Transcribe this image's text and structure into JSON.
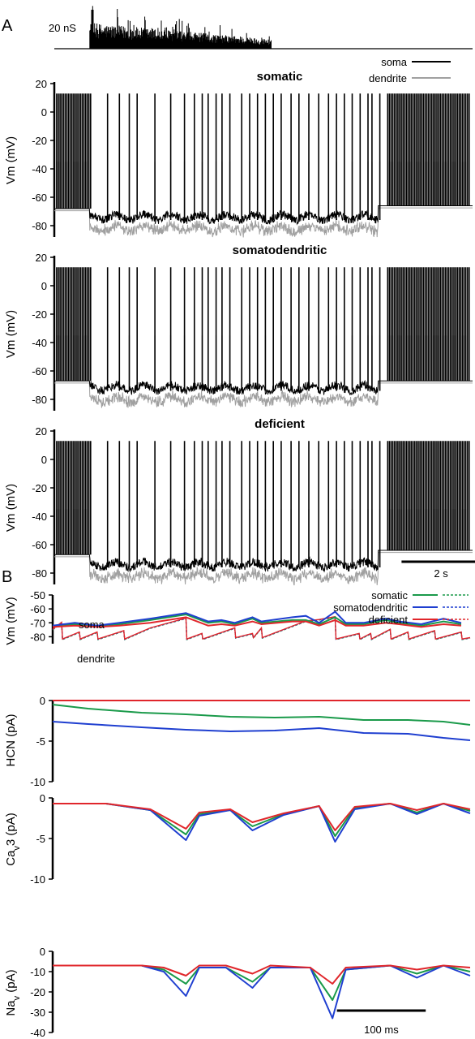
{
  "figure": {
    "panel_a_label": "A",
    "panel_b_label": "B"
  },
  "chart_data": [
    {
      "type": "line",
      "panel": "A",
      "name": "conductance",
      "scale_bar_label": "20 nS",
      "scale_bar_value": 20,
      "scale_bar_unit": "nS",
      "input_window_s": [
        0.9,
        5.5
      ]
    },
    {
      "type": "line",
      "panel": "A",
      "title": "somatic",
      "ylabel": "Vm (mV)",
      "ylim": [
        -88,
        20
      ],
      "yticks": [
        20,
        0,
        -20,
        -40,
        -60,
        -80
      ],
      "series": [
        {
          "name": "soma",
          "color": "#000000"
        },
        {
          "name": "dendrite",
          "color": "#a0a0a0"
        }
      ],
      "baseline_mV": {
        "before": -68,
        "during": -74,
        "after": -66
      },
      "spike_peak_mV": 13,
      "dendritic_spike_peak_mV": -35
    },
    {
      "type": "line",
      "panel": "A",
      "title": "somatodendritic",
      "ylabel": "Vm (mV)",
      "ylim": [
        -88,
        20
      ],
      "yticks": [
        20,
        0,
        -20,
        -40,
        -60,
        -80
      ],
      "series": [
        {
          "name": "soma",
          "color": "#000000"
        },
        {
          "name": "dendrite",
          "color": "#a0a0a0"
        }
      ],
      "baseline_mV": {
        "before": -67,
        "during": -72,
        "after": -67
      },
      "spike_peak_mV": 13,
      "dendritic_spike_peak_mV": -35
    },
    {
      "type": "line",
      "panel": "A",
      "title": "deficient",
      "ylabel": "Vm (mV)",
      "ylim": [
        -88,
        20
      ],
      "yticks": [
        20,
        0,
        -20,
        -40,
        -60,
        -80
      ],
      "series": [
        {
          "name": "soma",
          "color": "#000000"
        },
        {
          "name": "dendrite",
          "color": "#a0a0a0"
        }
      ],
      "baseline_mV": {
        "before": -67,
        "during": -74,
        "after": -64
      },
      "spike_peak_mV": 13,
      "dendritic_spike_peak_mV": -35,
      "time_scale_bar": "2 s"
    },
    {
      "type": "line",
      "panel": "B",
      "ylabel": "Vm (mV)",
      "ylim": [
        -85,
        -50
      ],
      "yticks": [
        -50,
        -60,
        -70,
        -80
      ],
      "annotations": [
        "soma",
        "dendrite"
      ],
      "legend": {
        "placement": "top-right",
        "entries": [
          "somatic",
          "somatodendritic",
          "deficient"
        ]
      },
      "series": [
        {
          "name": "somatic",
          "color": "#1a9a4a"
        },
        {
          "name": "somatodendritic",
          "color": "#1f3fd0"
        },
        {
          "name": "deficient",
          "color": "#e0262b"
        }
      ],
      "soma_x_ms": [
        0,
        25,
        50,
        75,
        110,
        150,
        175,
        190,
        205,
        225,
        235,
        270,
        285,
        300,
        318,
        330,
        350,
        375,
        390,
        415,
        440,
        460
      ],
      "soma_y_mV": [
        [
          -72,
          -71,
          -72,
          -71,
          -68,
          -64,
          -70,
          -69,
          -71,
          -67,
          -70,
          -68,
          -68,
          -71,
          -66,
          -71,
          -71,
          -68,
          -70,
          -72,
          -69,
          -71
        ],
        [
          -72,
          -70,
          -72,
          -70,
          -67,
          -63,
          -69,
          -68,
          -70,
          -66,
          -69,
          -66,
          -65,
          -70,
          -62,
          -70,
          -70,
          -67,
          -69,
          -71,
          -67,
          -70
        ],
        [
          -73,
          -72,
          -73,
          -72,
          -70,
          -66,
          -72,
          -71,
          -72,
          -69,
          -71,
          -69,
          -69,
          -72,
          -68,
          -72,
          -72,
          -70,
          -71,
          -73,
          -71,
          -72
        ]
      ],
      "dendrite_x_ms": [
        0,
        10,
        11,
        30,
        31,
        50,
        51,
        80,
        81,
        110,
        150,
        151,
        168,
        169,
        205,
        206,
        225,
        226,
        235,
        236,
        285,
        300,
        318,
        319,
        345,
        346,
        358,
        359,
        380,
        381,
        400,
        401,
        430,
        431,
        460,
        461,
        470
      ],
      "dendrite_y_mV": [
        -75,
        -70,
        -82,
        -77,
        -82,
        -77,
        -82,
        -76,
        -82,
        -74,
        -67,
        -82,
        -78,
        -82,
        -74,
        -81,
        -78,
        -81,
        -74,
        -81,
        -69,
        -68,
        -66,
        -82,
        -78,
        -82,
        -78,
        -82,
        -75,
        -82,
        -77,
        -82,
        -76,
        -82,
        -77,
        -82,
        -81
      ]
    },
    {
      "type": "line",
      "panel": "B",
      "ylabel": "HCN (pA)",
      "ylim": [
        -10,
        0
      ],
      "yticks": [
        0,
        -5,
        -10
      ],
      "series": [
        {
          "name": "somatic",
          "color": "#1a9a4a",
          "x_ms": [
            0,
            40,
            100,
            150,
            200,
            250,
            300,
            350,
            400,
            440,
            470
          ],
          "y_pA": [
            -0.5,
            -1.0,
            -1.5,
            -1.7,
            -2.0,
            -2.1,
            -2.0,
            -2.4,
            -2.4,
            -2.6,
            -3.0
          ]
        },
        {
          "name": "somatodendritic",
          "color": "#1f3fd0",
          "x_ms": [
            0,
            40,
            100,
            150,
            200,
            250,
            300,
            350,
            400,
            440,
            470
          ],
          "y_pA": [
            -2.6,
            -2.9,
            -3.3,
            -3.6,
            -3.8,
            -3.7,
            -3.4,
            -4.0,
            -4.1,
            -4.6,
            -4.9
          ]
        },
        {
          "name": "deficient",
          "color": "#e0262b",
          "x_ms": [
            0,
            470
          ],
          "y_pA": [
            0,
            0
          ]
        }
      ]
    },
    {
      "type": "line",
      "panel": "B",
      "ylabel": "Cav3 (pA)",
      "ylim": [
        -10,
        0
      ],
      "yticks": [
        0,
        -5,
        -10
      ],
      "series": [
        {
          "name": "somatic",
          "color": "#1a9a4a",
          "x_ms": [
            0,
            60,
            110,
            150,
            165,
            200,
            225,
            260,
            300,
            318,
            340,
            380,
            410,
            440,
            470
          ],
          "y_pA": [
            -0.7,
            -0.7,
            -1.5,
            -4.5,
            -2.0,
            -1.5,
            -3.5,
            -2.0,
            -1.0,
            -4.7,
            -1.2,
            -0.7,
            -1.8,
            -0.7,
            -1.6
          ]
        },
        {
          "name": "somatodendritic",
          "color": "#1f3fd0",
          "x_ms": [
            0,
            60,
            110,
            150,
            165,
            200,
            225,
            260,
            300,
            318,
            340,
            380,
            410,
            440,
            470
          ],
          "y_pA": [
            -0.7,
            -0.7,
            -1.5,
            -5.2,
            -2.2,
            -1.5,
            -4.0,
            -2.1,
            -1.0,
            -5.4,
            -1.4,
            -0.7,
            -2.0,
            -0.7,
            -1.9
          ]
        },
        {
          "name": "deficient",
          "color": "#e0262b",
          "x_ms": [
            0,
            60,
            110,
            150,
            165,
            200,
            225,
            260,
            300,
            318,
            340,
            380,
            410,
            440,
            470
          ],
          "y_pA": [
            -0.7,
            -0.7,
            -1.4,
            -3.8,
            -1.8,
            -1.4,
            -3.0,
            -1.9,
            -1.0,
            -4.0,
            -1.1,
            -0.7,
            -1.5,
            -0.7,
            -1.4
          ]
        }
      ]
    },
    {
      "type": "line",
      "panel": "B",
      "ylabel": "Nav (pA)",
      "ylim": [
        -40,
        0
      ],
      "yticks": [
        0,
        -10,
        -20,
        -30,
        -40
      ],
      "time_scale_bar": "100 ms",
      "series": [
        {
          "name": "somatic",
          "color": "#1a9a4a",
          "x_ms": [
            0,
            100,
            125,
            150,
            165,
            195,
            225,
            245,
            290,
            315,
            330,
            380,
            410,
            440,
            470
          ],
          "y_pA": [
            -7,
            -7,
            -9,
            -16,
            -8,
            -8,
            -15,
            -8,
            -8,
            -24,
            -9,
            -7,
            -11,
            -7,
            -10
          ]
        },
        {
          "name": "somatodendritic",
          "color": "#1f3fd0",
          "x_ms": [
            0,
            100,
            125,
            150,
            165,
            195,
            225,
            245,
            290,
            315,
            330,
            380,
            410,
            440,
            470
          ],
          "y_pA": [
            -7,
            -7,
            -10,
            -22,
            -8,
            -8,
            -18,
            -8,
            -8,
            -33,
            -9,
            -7,
            -13,
            -7,
            -12
          ]
        },
        {
          "name": "deficient",
          "color": "#e0262b",
          "x_ms": [
            0,
            100,
            125,
            150,
            165,
            195,
            225,
            245,
            290,
            315,
            330,
            380,
            410,
            440,
            470
          ],
          "y_pA": [
            -7,
            -7,
            -8,
            -12,
            -7,
            -7,
            -11,
            -7,
            -8,
            -16,
            -8,
            -7,
            -9,
            -7,
            -8
          ]
        }
      ]
    }
  ]
}
